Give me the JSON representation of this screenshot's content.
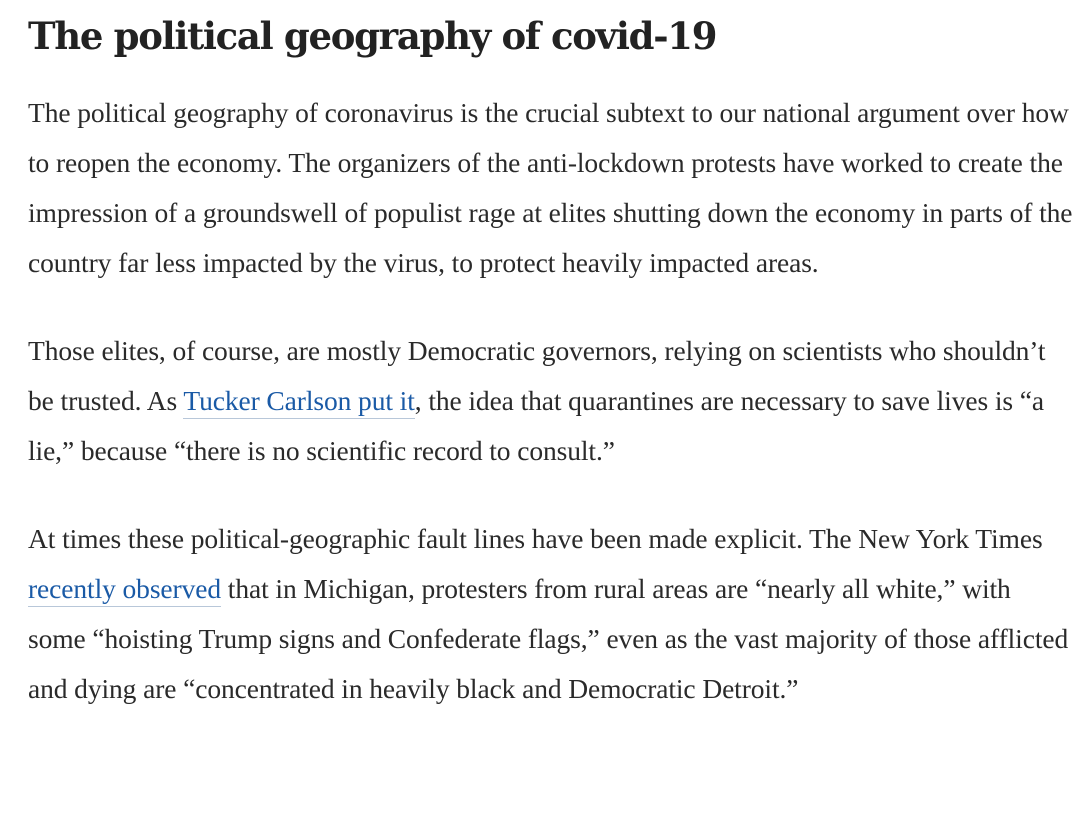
{
  "article": {
    "headline": "The political geography of covid-19",
    "paragraph1": {
      "text": "The political geography of coronavirus is the crucial subtext to our national argument over how to reopen the economy. The organizers of the anti-lockdown protests have worked to create the impression of a groundswell of populist rage at elites shutting down the economy in parts of the country far less impacted by the virus, to protect heavily impacted areas."
    },
    "paragraph2": {
      "before_link": "Those elites, of course, are mostly Democratic governors, relying on scientists who shouldn’t be trusted. As ",
      "link_text": "Tucker Carlson put it",
      "after_link": ", the idea that quarantines are necessary to save lives is “a lie,” because “there is no scientific record to consult.”"
    },
    "paragraph3": {
      "before_link": "At times these political-geographic fault lines have been made explicit. The New York Times ",
      "link_text": "recently observed",
      "after_link": " that in Michigan, protesters from rural areas are “nearly all white,” with some “hoisting Trump signs and Confederate flags,” even as the vast majority of those afflicted and dying are “concentrated in heavily black and Democratic Detroit.”"
    }
  },
  "colors": {
    "text": "#2a2a2a",
    "headline": "#222222",
    "link": "#1a5aa6",
    "background": "#ffffff"
  }
}
